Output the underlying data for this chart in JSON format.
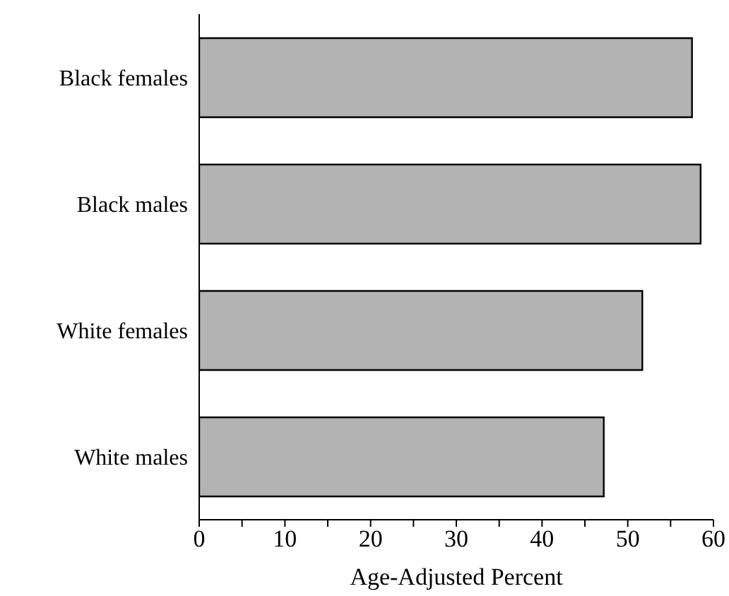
{
  "chart_data": {
    "type": "bar",
    "orientation": "horizontal",
    "xlabel": "Age-Adjusted Percent",
    "categories": [
      "Black females",
      "Black males",
      "White females",
      "White males"
    ],
    "values": [
      57.5,
      58.5,
      51.7,
      47.2
    ],
    "color": "#b3b3b3",
    "xlim": [
      0,
      60
    ],
    "xticks": [
      0,
      {
        "value": 5,
        "label": null
      },
      10,
      {
        "value": 15,
        "label": null
      },
      20,
      {
        "value": 25,
        "label": null
      },
      30,
      {
        "value": 35,
        "label": null
      },
      40,
      {
        "value": 45,
        "label": null
      },
      50,
      {
        "value": 55,
        "label": null
      },
      60
    ],
    "grid": false,
    "legend": false
  }
}
